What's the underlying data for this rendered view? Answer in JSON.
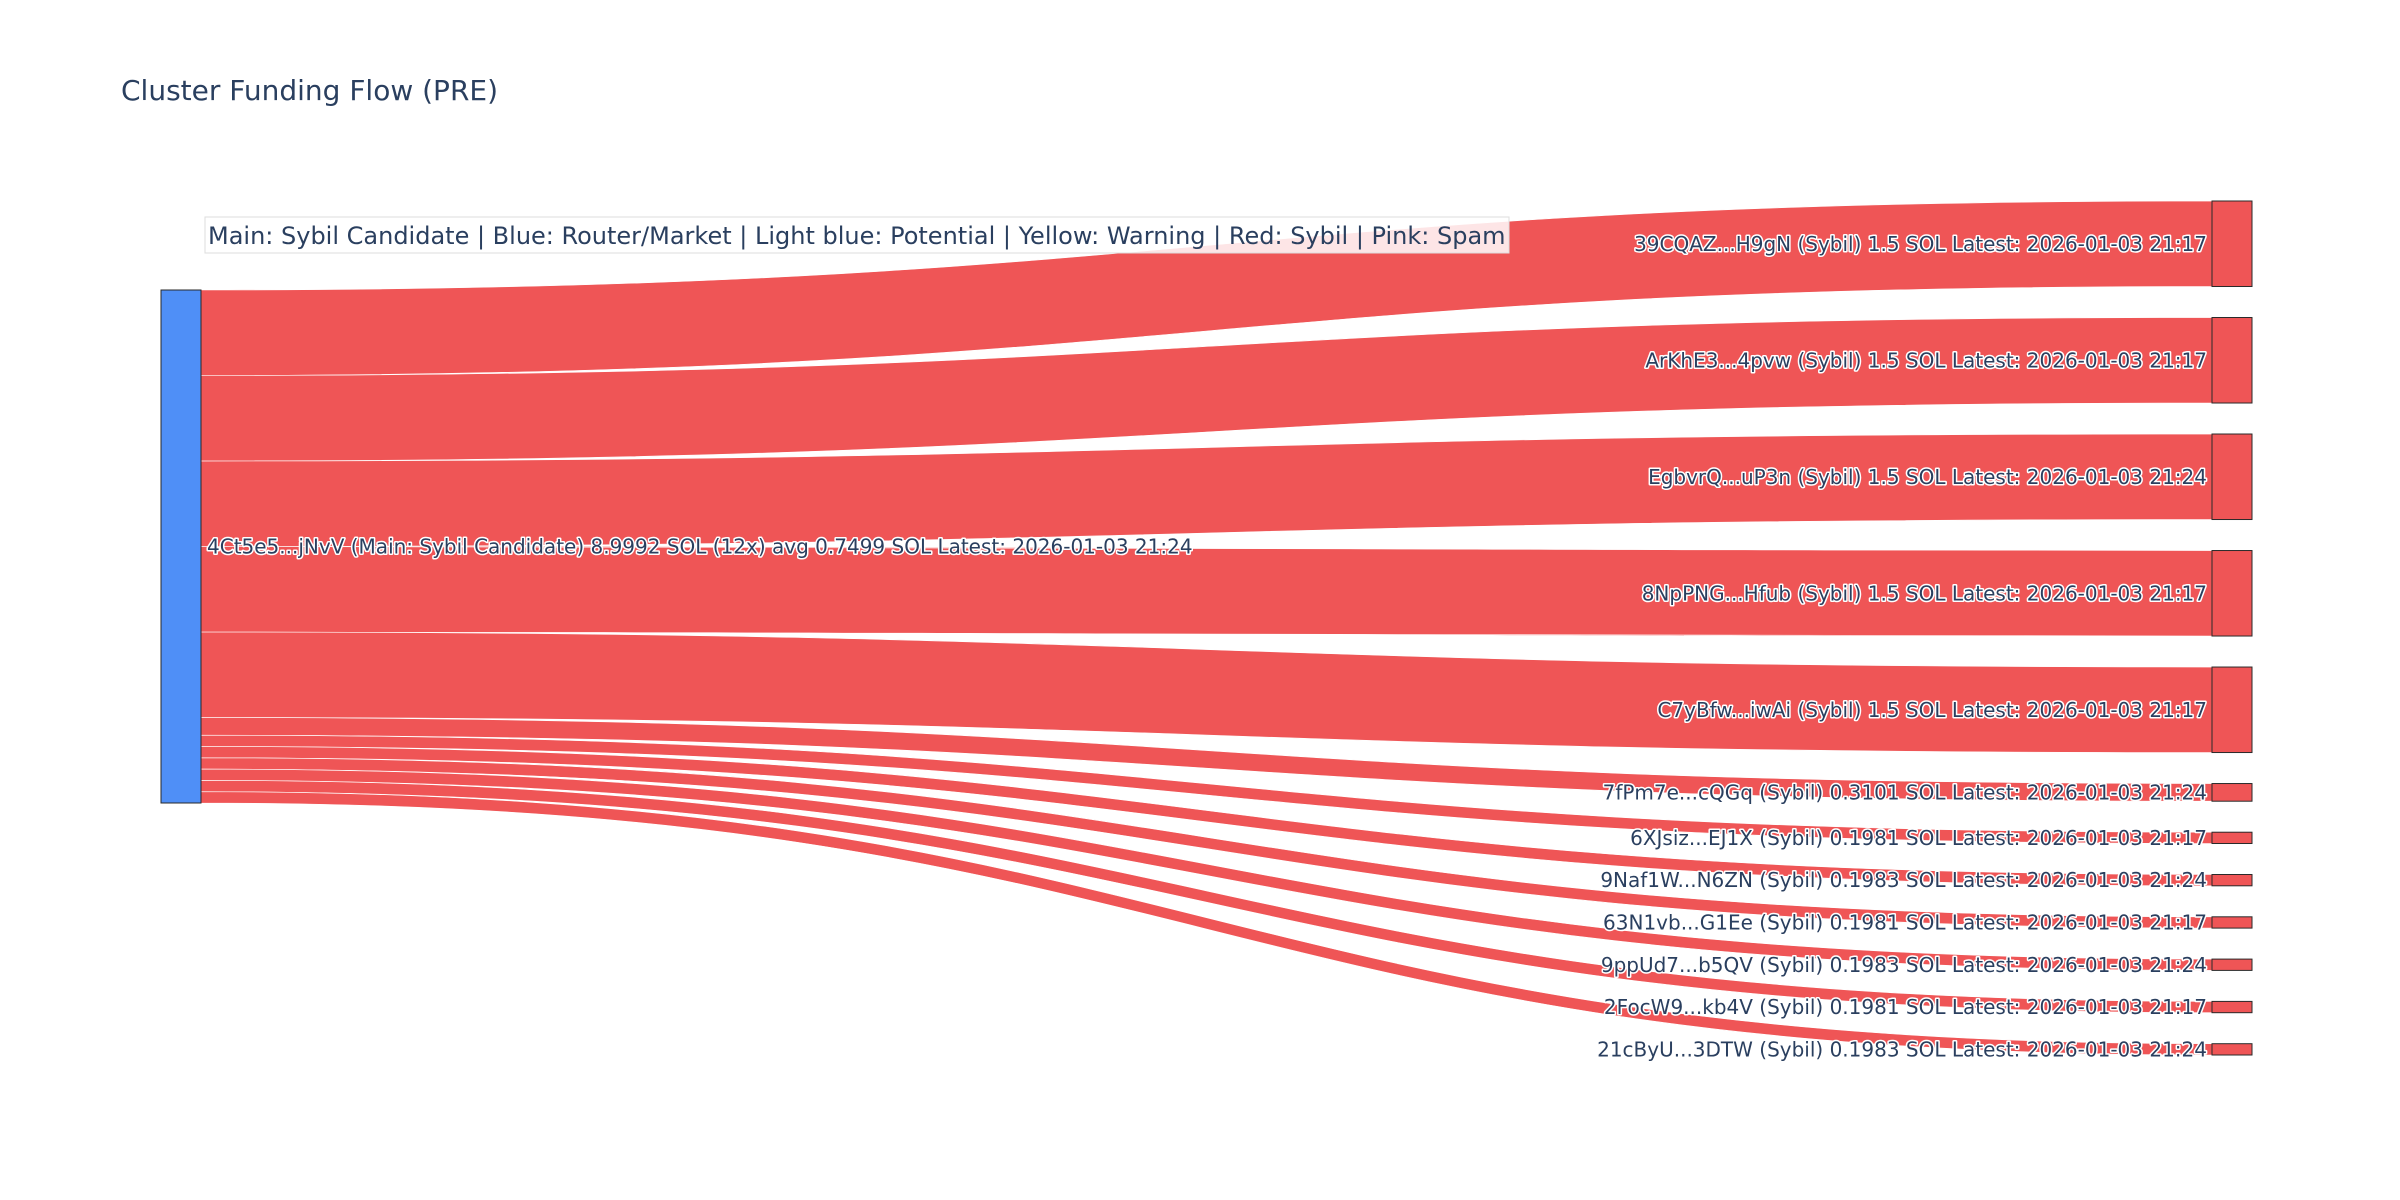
{
  "chart_data": {
    "type": "sankey",
    "title": "Cluster Funding Flow (PRE)",
    "annotation": "Main: Sybil Candidate  |  Blue: Router/Market | Light blue: Potential | Yellow: Warning | Red: Sybil | Pink: Spam",
    "colors": {
      "source_node": "#4f8ff7",
      "sybil_node": "#ef5556",
      "sybil_link": "#ef5556",
      "node_border": "#2a2a2a",
      "annotation_border": "#dddddd",
      "annotation_bg": "rgba(255,255,255,0.85)"
    },
    "source": {
      "label": "4Ct5e5...jNvV (Main: Sybil Candidate) 8.9992 SOL (12x) avg 0.7499 SOL Latest: 2026-01-03 21:24",
      "value": 8.9992,
      "category": "Sybil Candidate"
    },
    "targets": [
      {
        "label": "39CQAZ...H9gN (Sybil) 1.5 SOL Latest: 2026-01-03 21:17",
        "value": 1.5,
        "category": "Sybil"
      },
      {
        "label": "ArKhE3...4pvw (Sybil) 1.5 SOL Latest: 2026-01-03 21:17",
        "value": 1.5,
        "category": "Sybil"
      },
      {
        "label": "EgbvrQ...uP3n (Sybil) 1.5 SOL Latest: 2026-01-03 21:24",
        "value": 1.5,
        "category": "Sybil"
      },
      {
        "label": "8NpPNG...Hfub (Sybil) 1.5 SOL Latest: 2026-01-03 21:17",
        "value": 1.5,
        "category": "Sybil"
      },
      {
        "label": "C7yBfw...iwAi (Sybil) 1.5 SOL Latest: 2026-01-03 21:17",
        "value": 1.5,
        "category": "Sybil"
      },
      {
        "label": "7fPm7e...cQGq (Sybil) 0.3101 SOL Latest: 2026-01-03 21:24",
        "value": 0.3101,
        "category": "Sybil"
      },
      {
        "label": "6XJsiz...EJ1X (Sybil) 0.1981 SOL Latest: 2026-01-03 21:17",
        "value": 0.1981,
        "category": "Sybil"
      },
      {
        "label": "9Naf1W...N6ZN (Sybil) 0.1983 SOL Latest: 2026-01-03 21:24",
        "value": 0.1983,
        "category": "Sybil"
      },
      {
        "label": "63N1vb...G1Ee (Sybil) 0.1981 SOL Latest: 2026-01-03 21:17",
        "value": 0.1981,
        "category": "Sybil"
      },
      {
        "label": "9ppUd7...b5QV (Sybil) 0.1983 SOL Latest: 2026-01-03 21:24",
        "value": 0.1983,
        "category": "Sybil"
      },
      {
        "label": "2FocW9...kb4V (Sybil) 0.1981 SOL Latest: 2026-01-03 21:17",
        "value": 0.1981,
        "category": "Sybil"
      },
      {
        "label": "21cByU...3DTW (Sybil) 0.1983 SOL Latest: 2026-01-03 21:24",
        "value": 0.1983,
        "category": "Sybil"
      }
    ]
  }
}
